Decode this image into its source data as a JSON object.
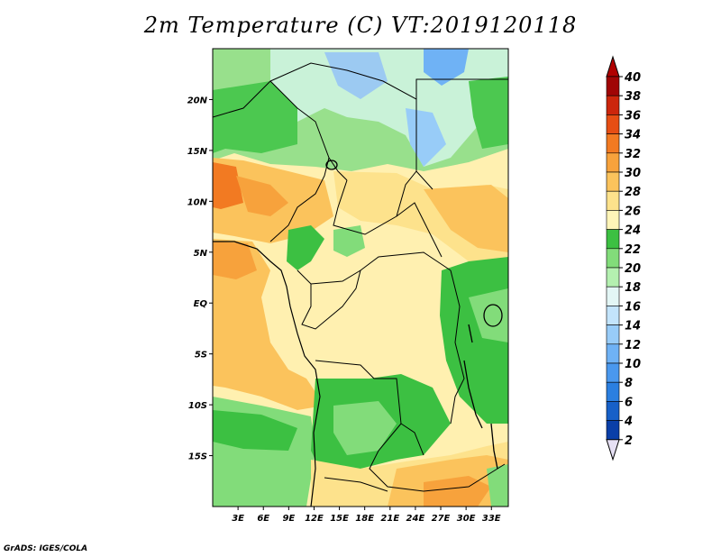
{
  "title": "2m Temperature (C) VT:2019120118",
  "credit": "GrADS: IGES/COLA",
  "map": {
    "lon_range": [
      0,
      35
    ],
    "lat_range": [
      -20,
      25
    ],
    "lat_ticks": [
      "20N",
      "15N",
      "10N",
      "5N",
      "EQ",
      "5S",
      "10S",
      "15S"
    ],
    "lat_tick_values": [
      20,
      15,
      10,
      5,
      0,
      -5,
      -10,
      -15
    ],
    "lon_ticks": [
      "3E",
      "6E",
      "9E",
      "12E",
      "15E",
      "18E",
      "21E",
      "24E",
      "27E",
      "30E",
      "33E"
    ],
    "lon_tick_values": [
      3,
      6,
      9,
      12,
      15,
      18,
      21,
      24,
      27,
      30,
      33
    ]
  },
  "colorbar": {
    "levels": [
      "2",
      "4",
      "6",
      "8",
      "10",
      "12",
      "14",
      "16",
      "18",
      "20",
      "22",
      "24",
      "26",
      "28",
      "30",
      "32",
      "34",
      "36",
      "38",
      "40"
    ],
    "colors": [
      "#0d0d7a",
      "#0a3fa8",
      "#1760c8",
      "#2b7fe0",
      "#4a98ee",
      "#6fb2f5",
      "#98ccf8",
      "#c3e4fb",
      "#e3f6f5",
      "#b4f0b0",
      "#82dc7a",
      "#3cc042",
      "#fff5b8",
      "#fde28c",
      "#fbc35c",
      "#f7a23c",
      "#f27a22",
      "#e64e14",
      "#cc260c",
      "#a00505"
    ],
    "low_color": "#e6e0f4",
    "high_color": "#b00000"
  }
}
